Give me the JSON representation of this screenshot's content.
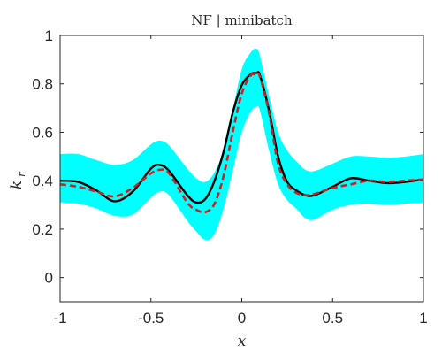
{
  "chart_data": {
    "type": "line",
    "title": "NF | minibatch",
    "xlabel": "x",
    "ylabel_main": "k",
    "ylabel_sub": "r",
    "xlim": [
      -1,
      1
    ],
    "ylim": [
      -0.1,
      1
    ],
    "x_ticks": [
      -1,
      -0.5,
      0,
      0.5,
      1
    ],
    "x_tick_labels": [
      "-1",
      "-0.5",
      "0",
      "0.5",
      "1"
    ],
    "y_ticks": [
      0,
      0.2,
      0.4,
      0.6,
      0.8,
      1
    ],
    "y_tick_labels": [
      "0",
      "0.2",
      "0.4",
      "0.6",
      "0.8",
      "1"
    ],
    "grid": false,
    "x": [
      -1.0,
      -0.9,
      -0.8,
      -0.7,
      -0.6,
      -0.5,
      -0.45,
      -0.4,
      -0.3,
      -0.25,
      -0.2,
      -0.15,
      -0.1,
      -0.05,
      0.0,
      0.05,
      0.08,
      0.1,
      0.15,
      0.2,
      0.25,
      0.3,
      0.35,
      0.4,
      0.5,
      0.6,
      0.7,
      0.8,
      0.9,
      1.0
    ],
    "band_upper": [
      0.51,
      0.51,
      0.485,
      0.465,
      0.485,
      0.55,
      0.565,
      0.545,
      0.45,
      0.41,
      0.395,
      0.435,
      0.53,
      0.69,
      0.86,
      0.93,
      0.945,
      0.915,
      0.75,
      0.6,
      0.525,
      0.48,
      0.445,
      0.44,
      0.47,
      0.5,
      0.5,
      0.495,
      0.5,
      0.51
    ],
    "band_lower": [
      0.31,
      0.305,
      0.285,
      0.255,
      0.26,
      0.33,
      0.355,
      0.34,
      0.235,
      0.19,
      0.155,
      0.18,
      0.285,
      0.44,
      0.6,
      0.685,
      0.705,
      0.69,
      0.525,
      0.385,
      0.32,
      0.285,
      0.245,
      0.24,
      0.28,
      0.3,
      0.305,
      0.3,
      0.305,
      0.31
    ],
    "series": [
      {
        "values": [
          0.4,
          0.395,
          0.36,
          0.315,
          0.355,
          0.45,
          0.465,
          0.44,
          0.34,
          0.31,
          0.325,
          0.4,
          0.52,
          0.68,
          0.795,
          0.84,
          0.845,
          0.835,
          0.69,
          0.5,
          0.395,
          0.36,
          0.34,
          0.34,
          0.375,
          0.41,
          0.4,
          0.39,
          0.395,
          0.405
        ],
        "color": "#000000",
        "style": "solid"
      },
      {
        "values": [
          0.385,
          0.375,
          0.355,
          0.335,
          0.37,
          0.43,
          0.445,
          0.43,
          0.31,
          0.28,
          0.27,
          0.305,
          0.42,
          0.6,
          0.76,
          0.835,
          0.835,
          0.83,
          0.68,
          0.47,
          0.385,
          0.35,
          0.34,
          0.345,
          0.37,
          0.385,
          0.4,
          0.395,
          0.4,
          0.405
        ],
        "color": "#cc2222",
        "style": "dashed"
      }
    ],
    "band_color": "#00ffff"
  }
}
